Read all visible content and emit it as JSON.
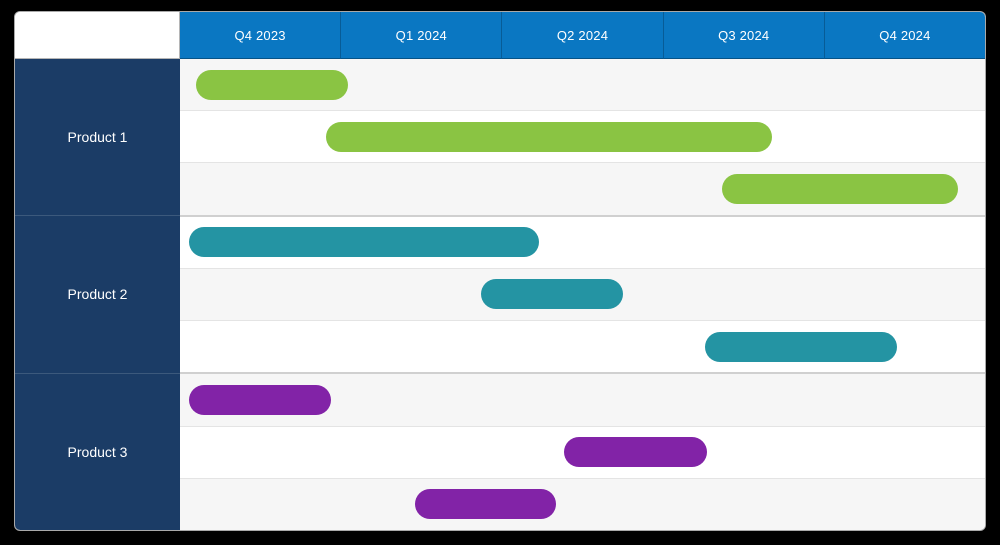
{
  "page": {
    "background": "#000000"
  },
  "chart_data": {
    "type": "gantt",
    "title": "",
    "timeline": {
      "unit": "quarter",
      "labels": [
        "Q4 2023",
        "Q1 2024",
        "Q2 2024",
        "Q3 2024",
        "Q4 2024"
      ],
      "range_start": "Oct 2023",
      "range_end": "Dec 2024",
      "grid": "column-headers-only"
    },
    "products": [
      {
        "label": "Product 1",
        "color": "#8ac443",
        "bars": [
          {
            "start_pct": 1.99,
            "end_pct": 20.87,
            "approx_start": "mid Oct 2023",
            "approx_end": "end Dec 2023"
          },
          {
            "start_pct": 18.14,
            "end_pct": 73.54,
            "approx_start": "late Dec 2023",
            "approx_end": "end Aug 2024"
          },
          {
            "start_pct": 67.33,
            "end_pct": 96.65,
            "approx_start": "early Aug 2024",
            "approx_end": "mid Dec 2024"
          }
        ]
      },
      {
        "label": "Product 2",
        "color": "#2494a3",
        "bars": [
          {
            "start_pct": 1.12,
            "end_pct": 44.6,
            "approx_start": "early Oct 2023",
            "approx_end": "mid Apr 2024"
          },
          {
            "start_pct": 37.39,
            "end_pct": 55.03,
            "approx_start": "mid Mar 2024",
            "approx_end": "early Jun 2024"
          },
          {
            "start_pct": 65.22,
            "end_pct": 89.07,
            "approx_start": "late Jul 2024",
            "approx_end": "early Nov 2024"
          }
        ]
      },
      {
        "label": "Product 3",
        "color": "#8223a7",
        "bars": [
          {
            "start_pct": 1.12,
            "end_pct": 18.76,
            "approx_start": "early Oct 2023",
            "approx_end": "late Dec 2023"
          },
          {
            "start_pct": 47.7,
            "end_pct": 65.47,
            "approx_start": "mid May 2024",
            "approx_end": "late Jul 2024"
          },
          {
            "start_pct": 29.19,
            "end_pct": 46.71,
            "approx_start": "mid Feb 2024",
            "approx_end": "end Apr 2024"
          }
        ]
      }
    ]
  },
  "colors": {
    "page_background": "#000000",
    "header_bg": "#0a77c2",
    "header_text": "#ffffff",
    "header_cell_divider": "rgba(0,0,0,0.22)",
    "sidebar_bg": "#1b3c66",
    "sidebar_text": "#ffffff",
    "row_stripe": "#f6f6f6",
    "row_white": "#ffffff",
    "row_divider": "#e4e4e4",
    "group_divider": "#d0d0d0",
    "container_border": "#a9a9a9",
    "bar_green": "#8ac443",
    "bar_teal": "#2494a3",
    "bar_purple": "#8223a7"
  }
}
